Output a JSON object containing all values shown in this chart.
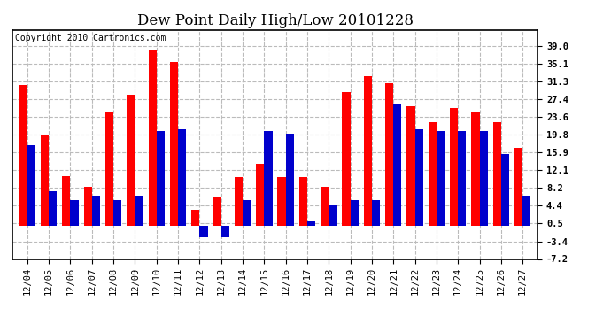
{
  "title": "Dew Point Daily High/Low 20101228",
  "copyright": "Copyright 2010 Cartronics.com",
  "dates": [
    "12/04",
    "12/05",
    "12/06",
    "12/07",
    "12/08",
    "12/09",
    "12/10",
    "12/11",
    "12/12",
    "12/13",
    "12/14",
    "12/15",
    "12/16",
    "12/17",
    "12/18",
    "12/19",
    "12/20",
    "12/21",
    "12/22",
    "12/23",
    "12/24",
    "12/25",
    "12/26",
    "12/27"
  ],
  "high": [
    30.5,
    19.8,
    10.8,
    8.5,
    24.5,
    28.5,
    38.0,
    35.5,
    3.5,
    6.2,
    10.5,
    13.5,
    10.5,
    10.5,
    8.5,
    29.0,
    32.5,
    31.0,
    26.0,
    22.5,
    25.5,
    24.5,
    22.5,
    17.0
  ],
  "low": [
    17.5,
    7.5,
    5.5,
    6.5,
    5.5,
    6.5,
    20.5,
    21.0,
    -2.5,
    -2.5,
    5.5,
    20.5,
    20.0,
    1.0,
    4.5,
    5.5,
    5.5,
    26.5,
    21.0,
    20.5,
    20.5,
    20.5,
    15.5,
    6.5
  ],
  "bar_width": 0.38,
  "high_color": "#ff0000",
  "low_color": "#0000cc",
  "ylim": [
    -7.2,
    42.5
  ],
  "yticks": [
    39.0,
    35.1,
    31.3,
    27.4,
    23.6,
    19.8,
    15.9,
    12.1,
    8.2,
    4.4,
    0.5,
    -3.4,
    -7.2
  ],
  "bg_color": "#ffffff",
  "grid_color": "#bbbbbb",
  "title_fontsize": 12,
  "tick_fontsize": 7.5,
  "copyright_fontsize": 7
}
